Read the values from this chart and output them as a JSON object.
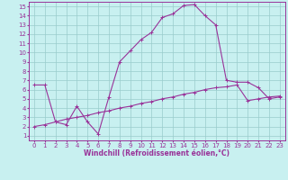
{
  "xlabel": "Windchill (Refroidissement éolien,°C)",
  "bg_color": "#c8f0f0",
  "line_color": "#993399",
  "grid_color": "#99cccc",
  "ylim": [
    0.5,
    15.5
  ],
  "xlim": [
    -0.5,
    23.5
  ],
  "yticks": [
    1,
    2,
    3,
    4,
    5,
    6,
    7,
    8,
    9,
    10,
    11,
    12,
    13,
    14,
    15
  ],
  "xticks": [
    0,
    1,
    2,
    3,
    4,
    5,
    6,
    7,
    8,
    9,
    10,
    11,
    12,
    13,
    14,
    15,
    16,
    17,
    18,
    19,
    20,
    21,
    22,
    23
  ],
  "line1_x": [
    0,
    1,
    2,
    3,
    4,
    5,
    6,
    7,
    8,
    9,
    10,
    11,
    12,
    13,
    14,
    15,
    16,
    17,
    18,
    19,
    20,
    21,
    22,
    23
  ],
  "line1_y": [
    6.5,
    6.5,
    2.5,
    2.2,
    4.2,
    2.5,
    1.2,
    5.2,
    9.0,
    10.2,
    11.4,
    12.2,
    13.8,
    14.2,
    15.1,
    15.2,
    14.0,
    13.0,
    7.0,
    6.8,
    6.8,
    6.2,
    5.0,
    5.2
  ],
  "line2_x": [
    0,
    1,
    2,
    3,
    4,
    5,
    6,
    7,
    8,
    9,
    10,
    11,
    12,
    13,
    14,
    15,
    16,
    17,
    18,
    19,
    20,
    21,
    22,
    23
  ],
  "line2_y": [
    2.0,
    2.2,
    2.5,
    2.8,
    3.0,
    3.2,
    3.5,
    3.7,
    4.0,
    4.2,
    4.5,
    4.7,
    5.0,
    5.2,
    5.5,
    5.7,
    6.0,
    6.2,
    6.3,
    6.5,
    4.8,
    5.0,
    5.2,
    5.3
  ],
  "tick_fontsize": 5,
  "xlabel_fontsize": 5.5,
  "xlabel_fontweight": "bold"
}
